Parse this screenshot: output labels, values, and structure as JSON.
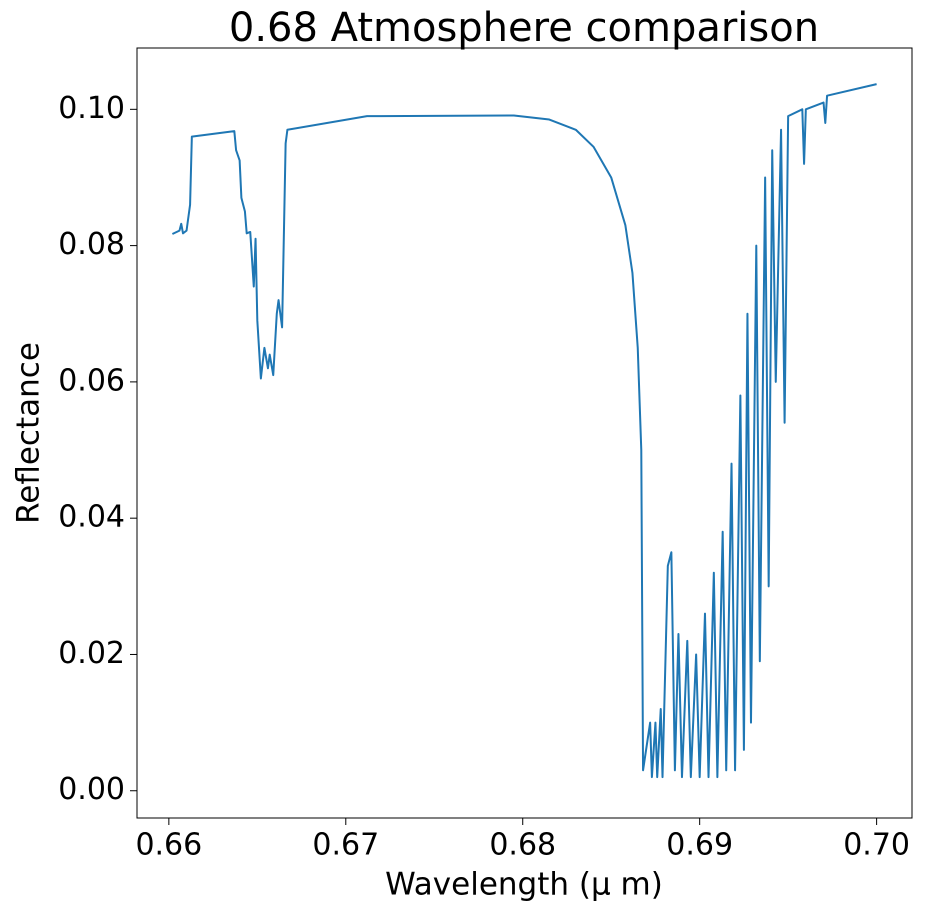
{
  "chart_data": {
    "type": "line",
    "title": "0.68 Atmosphere comparison",
    "x_label": "Wavelength (μ m)",
    "y_label": "Reflectance",
    "xlim": [
      0.6582,
      0.702
    ],
    "ylim": [
      -0.004,
      0.109
    ],
    "xticks": [
      0.66,
      0.67,
      0.68,
      0.69,
      {
        "value": 0.7,
        "label": "0.70"
      }
    ],
    "yticks": [
      {
        "value": 0,
        "label": "0.00"
      },
      0.02,
      0.04,
      0.06,
      0.08,
      {
        "value": 0.1,
        "label": "0.10"
      }
    ],
    "grid": false,
    "series": [
      {
        "color": "#1f77b4",
        "x": [
          0.6602,
          0.6606,
          0.6607,
          0.6608,
          0.661,
          0.6612,
          0.6613,
          0.6637,
          0.6638,
          0.664,
          0.6641,
          0.6643,
          0.6644,
          0.6646,
          0.6648,
          0.6649,
          0.665,
          0.6652,
          0.6654,
          0.6656,
          0.6657,
          0.6659,
          0.6661,
          0.6662,
          0.6664,
          0.6666,
          0.6667,
          0.6712,
          0.6795,
          0.6815,
          0.683,
          0.684,
          0.685,
          0.6858,
          0.6862,
          0.6865,
          0.6867,
          0.6868,
          0.6872,
          0.6873,
          0.6875,
          0.6876,
          0.6878,
          0.6879,
          0.6882,
          0.6884,
          0.6886,
          0.6888,
          0.689,
          0.6893,
          0.6895,
          0.6898,
          0.69,
          0.6903,
          0.6905,
          0.6908,
          0.691,
          0.6913,
          0.6915,
          0.6918,
          0.692,
          0.6923,
          0.6925,
          0.6927,
          0.6929,
          0.6932,
          0.6934,
          0.6937,
          0.6939,
          0.6941,
          0.6943,
          0.6946,
          0.6948,
          0.695,
          0.6958,
          0.6959,
          0.696,
          0.697,
          0.6971,
          0.6972,
          0.7
        ],
        "values": [
          0.0817,
          0.0822,
          0.0832,
          0.0818,
          0.0822,
          0.086,
          0.096,
          0.0968,
          0.094,
          0.0925,
          0.087,
          0.085,
          0.0818,
          0.082,
          0.074,
          0.081,
          0.069,
          0.0605,
          0.065,
          0.062,
          0.064,
          0.061,
          0.07,
          0.072,
          0.068,
          0.095,
          0.097,
          0.099,
          0.0991,
          0.0985,
          0.097,
          0.0945,
          0.09,
          0.083,
          0.076,
          0.065,
          0.05,
          0.003,
          0.01,
          0.002,
          0.01,
          0.002,
          0.012,
          0.002,
          0.033,
          0.035,
          0.003,
          0.023,
          0.002,
          0.022,
          0.002,
          0.02,
          0.002,
          0.026,
          0.002,
          0.032,
          0.002,
          0.038,
          0.003,
          0.048,
          0.003,
          0.058,
          0.006,
          0.07,
          0.01,
          0.08,
          0.019,
          0.09,
          0.03,
          0.094,
          0.06,
          0.097,
          0.054,
          0.099,
          0.1,
          0.092,
          0.1,
          0.101,
          0.098,
          0.102,
          0.1037
        ]
      }
    ]
  }
}
